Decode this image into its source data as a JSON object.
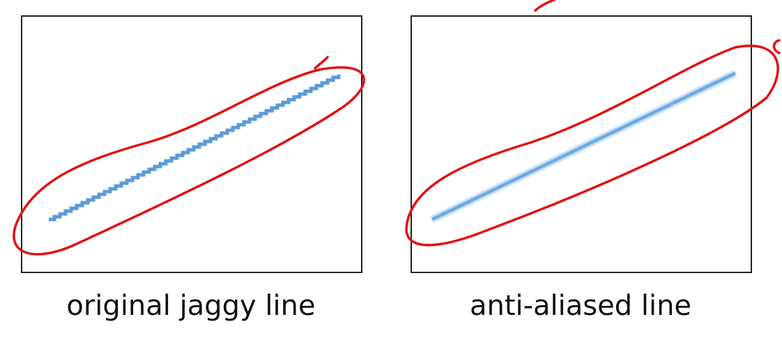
{
  "panels": [
    {
      "caption": "original jaggy line"
    },
    {
      "caption": "anti-aliased line"
    }
  ]
}
